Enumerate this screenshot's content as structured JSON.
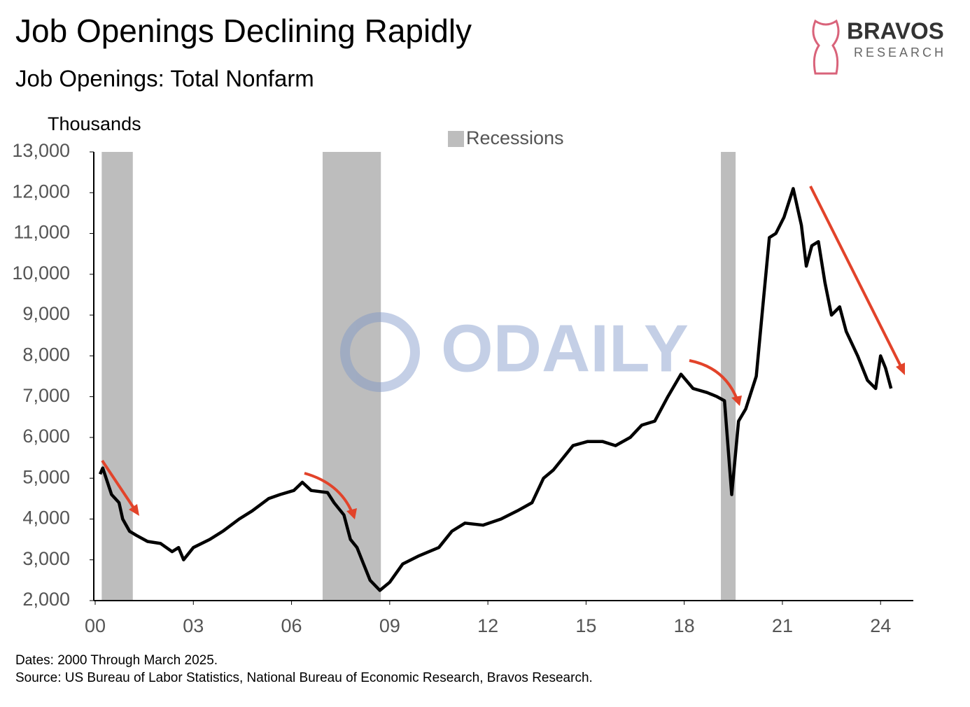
{
  "chart_data": {
    "type": "line",
    "title": "Job Openings Declining Rapidly",
    "subtitle": "Job Openings: Total Nonfarm",
    "y_label": "Thousands",
    "legend_label": "Recessions",
    "recession_color": "#bdbdbd",
    "recessions": [
      [
        2000.2,
        2001.15
      ],
      [
        2006.95,
        2008.73
      ],
      [
        2019.12,
        2019.57
      ]
    ],
    "x": [
      2000.15,
      2000.23,
      2000.5,
      2000.73,
      2000.84,
      2001.05,
      2001.26,
      2001.6,
      2002.0,
      2002.35,
      2002.55,
      2002.7,
      2003.0,
      2003.5,
      2003.9,
      2004.4,
      2004.8,
      2005.3,
      2005.65,
      2006.07,
      2006.33,
      2006.6,
      2007.1,
      2007.3,
      2007.6,
      2007.8,
      2008.0,
      2008.2,
      2008.4,
      2008.7,
      2009.0,
      2009.4,
      2009.9,
      2010.5,
      2010.9,
      2011.3,
      2011.85,
      2012.4,
      2012.9,
      2013.35,
      2013.7,
      2014.0,
      2014.3,
      2014.6,
      2015.05,
      2015.5,
      2015.9,
      2016.35,
      2016.7,
      2017.1,
      2017.5,
      2017.9,
      2018.27,
      2018.7,
      2019.0,
      2019.23,
      2019.45,
      2019.66,
      2019.88,
      2020.2,
      2020.4,
      2020.6,
      2020.8,
      2021.05,
      2021.33,
      2021.58,
      2021.73,
      2021.9,
      2022.1,
      2022.3,
      2022.5,
      2022.75,
      2022.95,
      2023.3,
      2023.6,
      2023.85,
      2024.0,
      2024.15,
      2024.32
    ],
    "values": [
      5100,
      5250,
      4600,
      4400,
      4000,
      3700,
      3600,
      3450,
      3400,
      3200,
      3300,
      3000,
      3300,
      3500,
      3700,
      4000,
      4200,
      4500,
      4600,
      4700,
      4900,
      4700,
      4650,
      4400,
      4100,
      3500,
      3300,
      2900,
      2500,
      2250,
      2450,
      2900,
      3100,
      3300,
      3700,
      3900,
      3850,
      4000,
      4200,
      4400,
      5000,
      5200,
      5500,
      5800,
      5900,
      5900,
      5800,
      6000,
      6300,
      6400,
      7000,
      7550,
      7200,
      7100,
      7000,
      6900,
      4600,
      6400,
      6700,
      7500,
      9200,
      10900,
      11000,
      11400,
      12100,
      11200,
      10200,
      10700,
      10800,
      9800,
      9000,
      9200,
      8600,
      8000,
      7400,
      7200,
      8000,
      7700,
      7200
    ],
    "color": "#000000",
    "xlim": [
      2000,
      2025
    ],
    "ylim": [
      2000,
      13000
    ],
    "xticks": [
      {
        "value": 2000,
        "label": "00"
      },
      {
        "value": 2003,
        "label": "03"
      },
      {
        "value": 2006,
        "label": "06"
      },
      {
        "value": 2009,
        "label": "09"
      },
      {
        "value": 2012,
        "label": "12"
      },
      {
        "value": 2015,
        "label": "15"
      },
      {
        "value": 2018,
        "label": "18"
      },
      {
        "value": 2021,
        "label": "21"
      },
      {
        "value": 2024,
        "label": "24"
      }
    ],
    "yticks": [
      {
        "value": 2000,
        "label": "2,000"
      },
      {
        "value": 3000,
        "label": "3,000"
      },
      {
        "value": 4000,
        "label": "4,000"
      },
      {
        "value": 5000,
        "label": "5,000"
      },
      {
        "value": 6000,
        "label": "6,000"
      },
      {
        "value": 7000,
        "label": "7,000"
      },
      {
        "value": 8000,
        "label": "8,000"
      },
      {
        "value": 9000,
        "label": "9,000"
      },
      {
        "value": 10000,
        "label": "10,000"
      },
      {
        "value": 11000,
        "label": "11,000"
      },
      {
        "value": 12000,
        "label": "12,000"
      },
      {
        "value": 13000,
        "label": "13,000"
      }
    ],
    "notes": [
      "Dates: 2000 Through March 2025.",
      "Source: US Bureau of Labor Statistics, National Bureau of Economic Research, Bravos Research."
    ],
    "logo": {
      "name": "BRAVOS",
      "tagline": "RESEARCH"
    },
    "watermark": "ODAILY"
  }
}
